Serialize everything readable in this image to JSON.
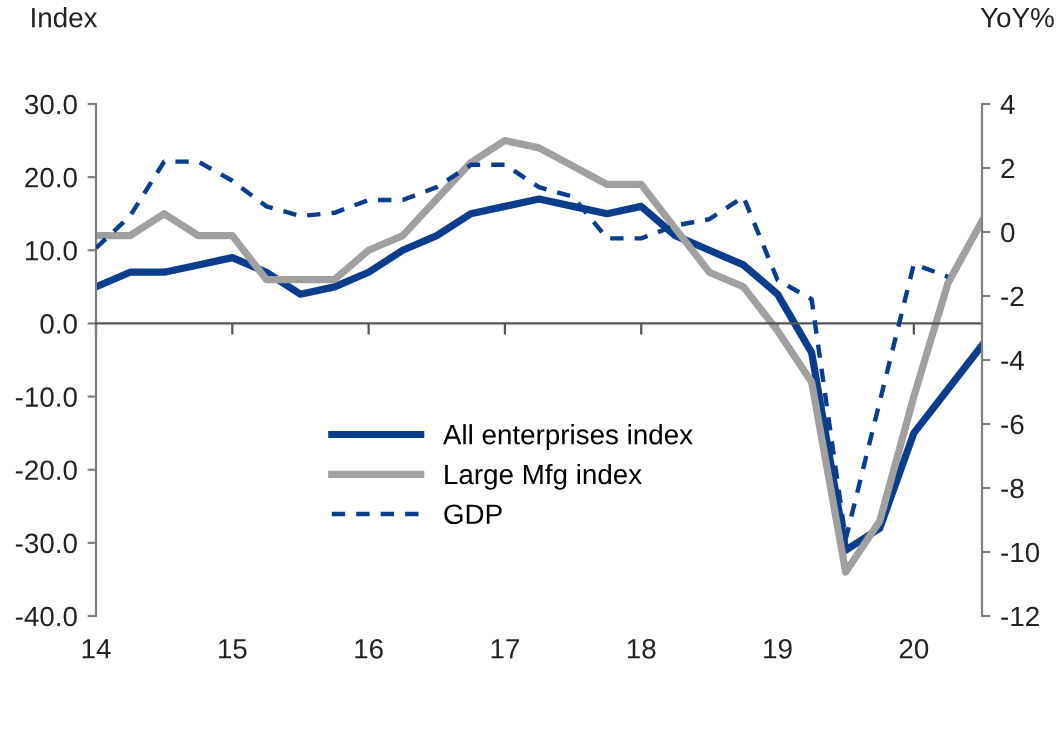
{
  "chart_data": {
    "type": "line",
    "ylabel": "Index",
    "y2label": "YoY%",
    "ylim": [
      -40,
      30
    ],
    "yticks": [
      {
        "value": -40,
        "label": "-40.0"
      },
      {
        "value": -30,
        "label": "-30.0"
      },
      {
        "value": -20,
        "label": "-20.0"
      },
      {
        "value": -10,
        "label": "-10.0"
      },
      {
        "value": 0,
        "label": "0.0"
      },
      {
        "value": 10,
        "label": "10.0"
      },
      {
        "value": 20,
        "label": "20.0"
      },
      {
        "value": 30,
        "label": "30.0"
      }
    ],
    "y2lim": [
      -12,
      4
    ],
    "y2ticks": [
      -12,
      -10,
      -8,
      -6,
      -4,
      -2,
      0,
      2,
      4
    ],
    "xlim": [
      14,
      20.5
    ],
    "xticks": [
      14,
      15,
      16,
      17,
      18,
      19,
      20
    ],
    "legend": "bottom",
    "series": [
      {
        "name": "All enterprises index",
        "color": "#0a3d8c",
        "line_style": "solid",
        "x": [
          14,
          14.25,
          14.5,
          14.75,
          15,
          15.25,
          15.5,
          15.75,
          16,
          16.25,
          16.5,
          16.75,
          17,
          17.25,
          17.5,
          17.75,
          18,
          18.25,
          18.5,
          18.75,
          19,
          19.25,
          19.5,
          19.75,
          20,
          20.25,
          20.5
        ],
        "values": [
          5,
          7,
          7,
          8,
          9,
          7,
          4,
          5,
          7,
          10,
          12,
          15,
          16,
          17,
          16,
          15,
          16,
          12,
          10,
          8,
          4,
          -4,
          -31,
          -28,
          -15,
          -9,
          -3
        ]
      },
      {
        "name": "Large Mfg index",
        "color": "#a0a0a0",
        "line_style": "solid",
        "x": [
          14,
          14.25,
          14.5,
          14.75,
          15,
          15.25,
          15.5,
          15.75,
          16,
          16.25,
          16.5,
          16.75,
          17,
          17.25,
          17.5,
          17.75,
          18,
          18.25,
          18.5,
          18.75,
          19,
          19.25,
          19.5,
          19.75,
          20,
          20.25,
          20.5
        ],
        "values": [
          12,
          12,
          15,
          12,
          12,
          6,
          6,
          6,
          10,
          12,
          17,
          22,
          25,
          24,
          21.5,
          19,
          19,
          13,
          7,
          5,
          -1,
          -8,
          -34,
          -27,
          -10,
          5.5,
          14
        ]
      },
      {
        "name": "GDP",
        "color": "#0a3d8c",
        "line_style": "dashed",
        "axis": "y2",
        "x": [
          14,
          14.25,
          14.5,
          14.75,
          15,
          15.25,
          15.5,
          15.75,
          16,
          16.25,
          16.5,
          16.75,
          17,
          17.25,
          17.5,
          17.75,
          18,
          18.25,
          18.5,
          18.75,
          19,
          19.25,
          19.5,
          20,
          20.25
        ],
        "values": [
          -0.5,
          0.5,
          2.2,
          2.2,
          1.6,
          0.8,
          0.5,
          0.6,
          1.0,
          1.0,
          1.4,
          2.1,
          2.1,
          1.4,
          1.1,
          -0.2,
          -0.2,
          0.2,
          0.4,
          1.1,
          -1.5,
          -2.1,
          -9.6,
          -1.0,
          -1.4
        ]
      }
    ]
  }
}
